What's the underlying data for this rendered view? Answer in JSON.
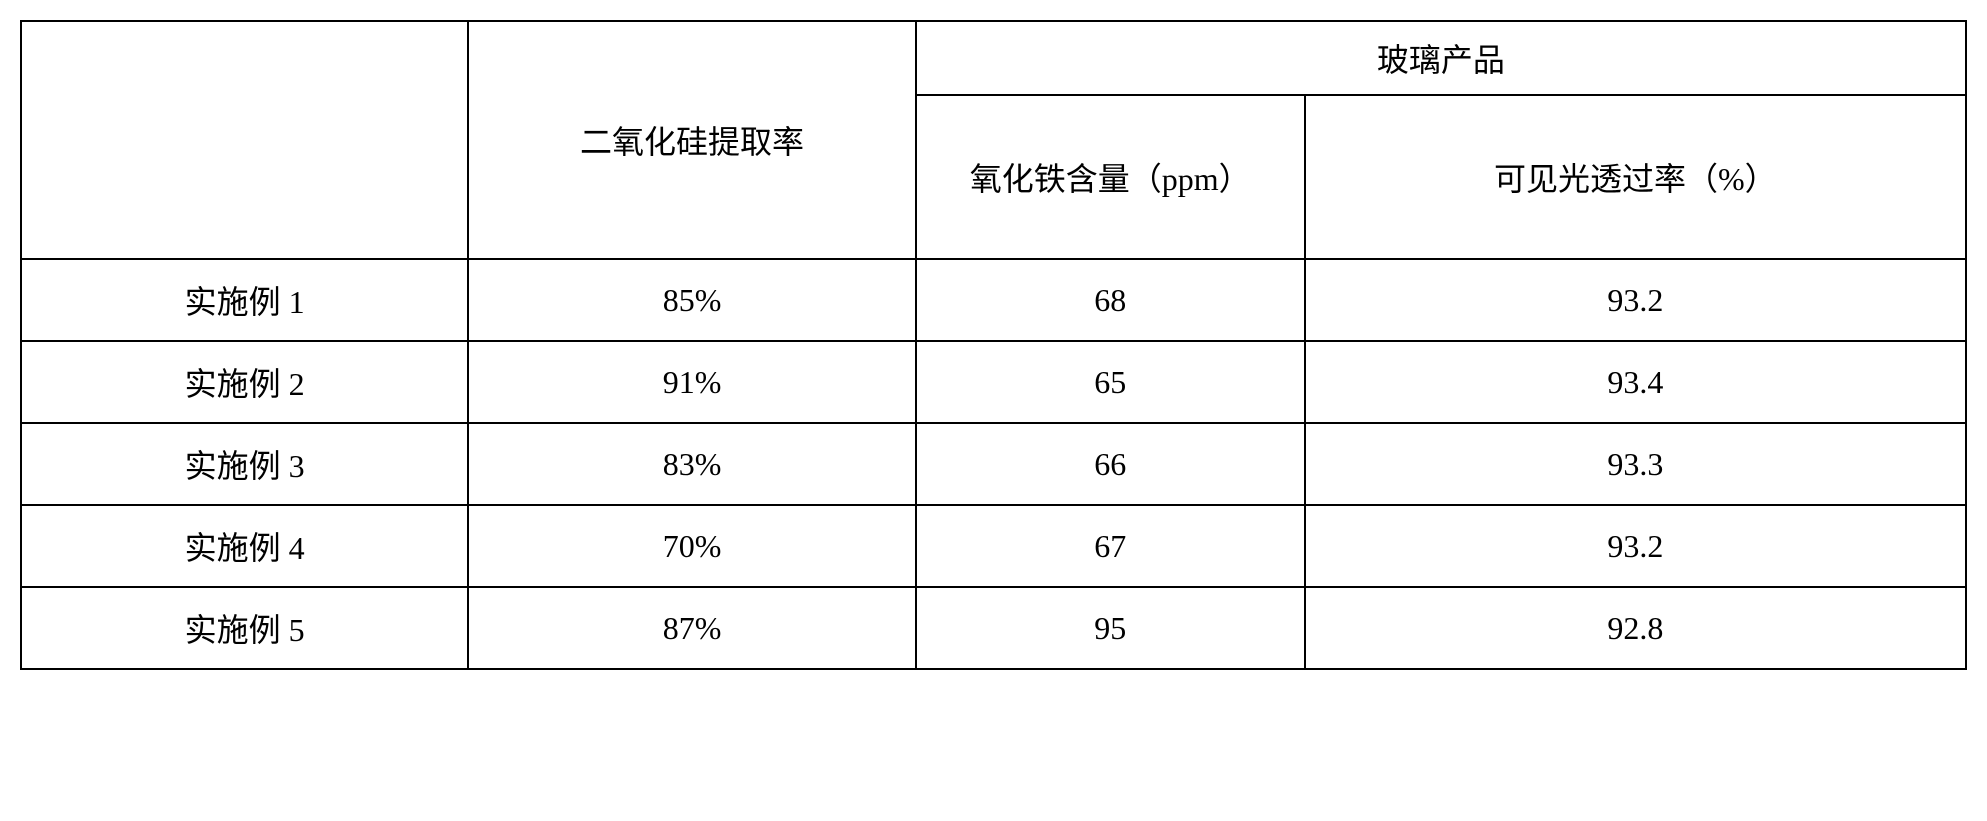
{
  "table": {
    "type": "table",
    "border_color": "#000000",
    "background_color": "#ffffff",
    "text_color": "#000000",
    "font_family": "SimSun",
    "header_fontsize": 32,
    "cell_fontsize": 32,
    "columns": {
      "row_label_header": "",
      "col1_header": "二氧化硅提取率",
      "group_header": "玻璃产品",
      "col2_header": "氧化铁含量（ppm）",
      "col3_header": "可见光透过率（%）"
    },
    "column_widths_pct": [
      23,
      23,
      20,
      34
    ],
    "rows": [
      {
        "label": "实施例 1",
        "extraction": "85%",
        "iron": "68",
        "transmittance": "93.2"
      },
      {
        "label": "实施例 2",
        "extraction": "91%",
        "iron": "65",
        "transmittance": "93.4"
      },
      {
        "label": "实施例 3",
        "extraction": "83%",
        "iron": "66",
        "transmittance": "93.3"
      },
      {
        "label": "实施例 4",
        "extraction": "70%",
        "iron": "67",
        "transmittance": "93.2"
      },
      {
        "label": "实施例 5",
        "extraction": "87%",
        "iron": "95",
        "transmittance": "92.8"
      }
    ]
  }
}
